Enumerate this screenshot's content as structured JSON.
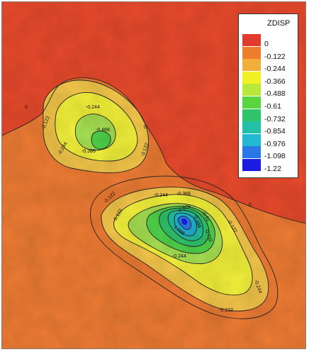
{
  "legend": {
    "title": "ZDISP",
    "levels": [
      {
        "label": "0",
        "color": "#e23a2e"
      },
      {
        "label": "-0.122",
        "color": "#ef7d2e"
      },
      {
        "label": "-0.244",
        "color": "#f1ae3a"
      },
      {
        "label": "-0.366",
        "color": "#f4f028"
      },
      {
        "label": "-0.488",
        "color": "#b8e83a"
      },
      {
        "label": "-0.61",
        "color": "#5ad43f"
      },
      {
        "label": "-0.732",
        "color": "#2fc46a"
      },
      {
        "label": "-0.854",
        "color": "#23c0a6"
      },
      {
        "label": "-0.976",
        "color": "#22b8d4"
      },
      {
        "label": "-1.098",
        "color": "#2a78e6"
      },
      {
        "label": "-1.22",
        "color": "#1c1ce0"
      }
    ]
  },
  "contour_labels": {
    "zero_left": "0",
    "zero_mid": "0",
    "zero_right": "0",
    "upper_0122_left": "-0.122",
    "upper_0244_top": "-0.244",
    "upper_0488": "-0.488",
    "upper_0366": "-0.366",
    "upper_0244_left": "-0.244",
    "upper_0122_right": "-0.122",
    "lower_0122_left": "-0.122",
    "lower_0244_top": "-0.244",
    "lower_0366_top": "-0.366",
    "lower_0122_topright": "-0.122",
    "lower_0122_right": "-0.122",
    "lower_0244_right": "-0.244",
    "lower_0244_bottom": "-0.244",
    "lower_0122_bottom": "-0.122",
    "lower_inner_a": "-0.976",
    "lower_inner_b": "-1.098",
    "lower_inner_c": "-0.61",
    "lower_inner_d": "-0.488",
    "lower_inner_e": "-0.732",
    "lower_0122_leftmid": "-0.122"
  },
  "colors": {
    "zero_region": "#e84a2c",
    "lvl_0122": "#ee7c34",
    "lvl_0244": "#f4c64a",
    "lvl_0366": "#f2f03a",
    "lvl_0488": "#a6e052",
    "lvl_061": "#4fd24a",
    "lvl_0732": "#2fc46a",
    "lvl_0854": "#23bfa0",
    "lvl_0976": "#22b4d6",
    "lvl_1098": "#2a7ae8",
    "lvl_122": "#1c1ce0"
  }
}
